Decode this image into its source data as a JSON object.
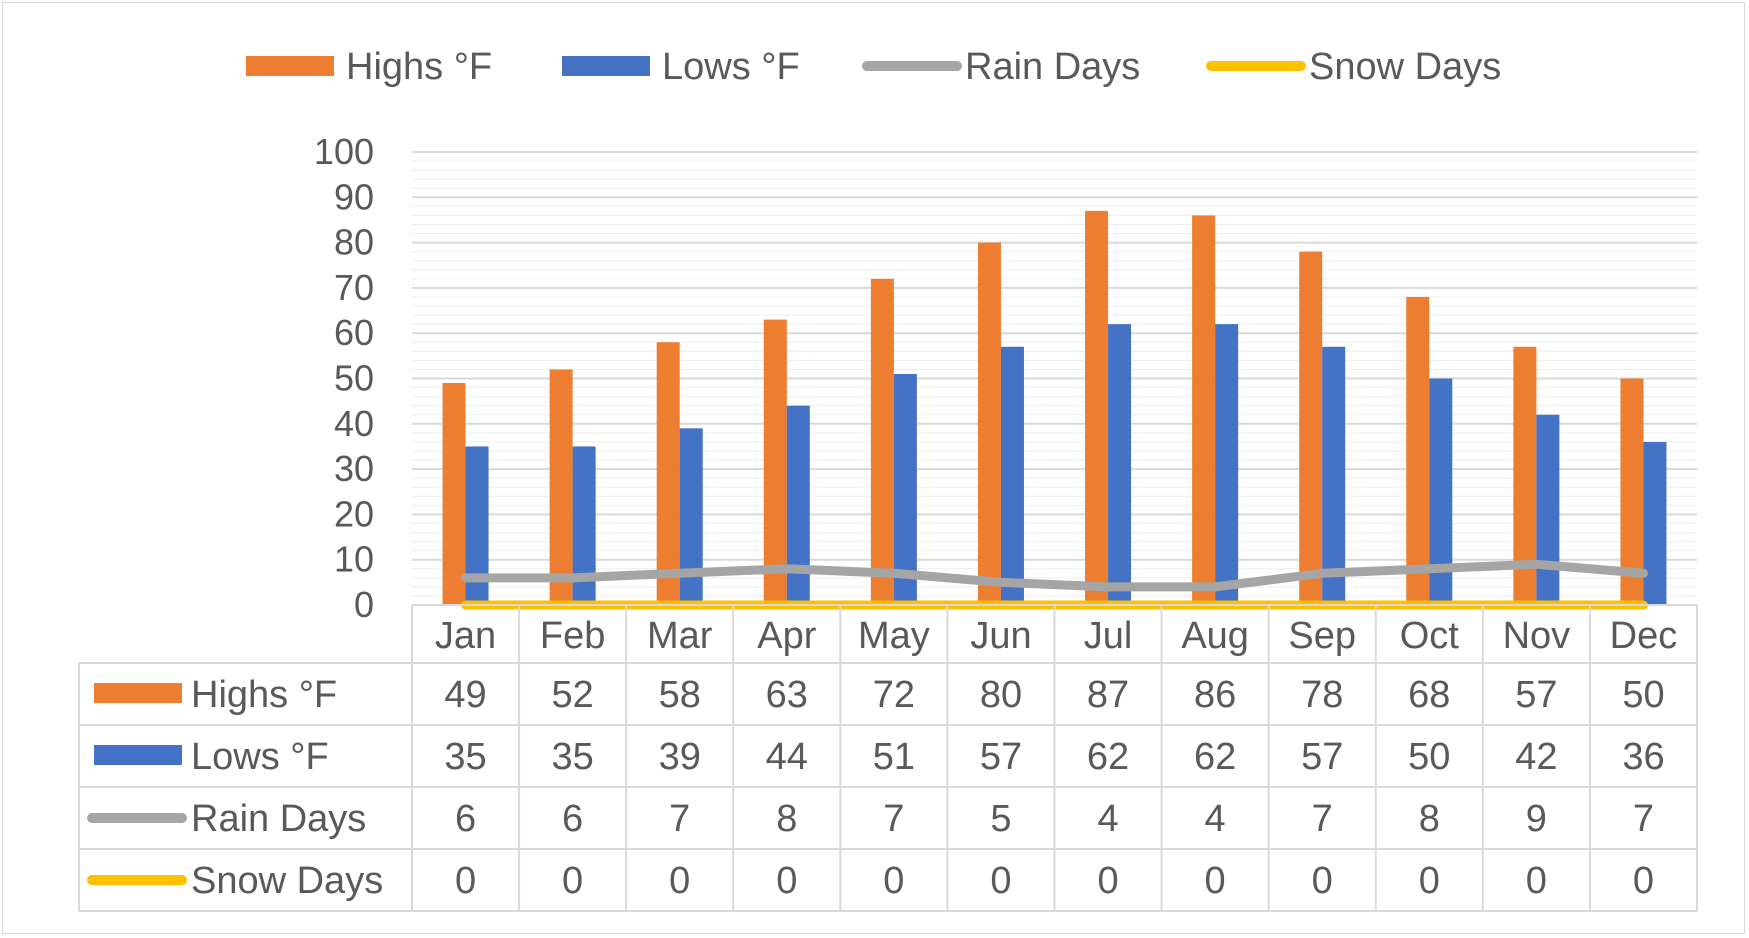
{
  "chart_data": {
    "type": "bar",
    "categories": [
      "Jan",
      "Feb",
      "Mar",
      "Apr",
      "May",
      "Jun",
      "Jul",
      "Aug",
      "Sep",
      "Oct",
      "Nov",
      "Dec"
    ],
    "series": [
      {
        "name": "Highs °F",
        "kind": "bar",
        "color": "#ED7D31",
        "values": [
          49,
          52,
          58,
          63,
          72,
          80,
          87,
          86,
          78,
          68,
          57,
          50
        ]
      },
      {
        "name": "Lows °F",
        "kind": "bar",
        "color": "#4472C4",
        "values": [
          35,
          35,
          39,
          44,
          51,
          57,
          62,
          62,
          57,
          50,
          42,
          36
        ]
      },
      {
        "name": "Rain Days",
        "kind": "line",
        "color": "#A5A5A5",
        "values": [
          6,
          6,
          7,
          8,
          7,
          5,
          4,
          4,
          7,
          8,
          9,
          7
        ]
      },
      {
        "name": "Snow Days",
        "kind": "line",
        "color": "#FFC000",
        "values": [
          0,
          0,
          0,
          0,
          0,
          0,
          0,
          0,
          0,
          0,
          0,
          0
        ]
      }
    ],
    "ylim": [
      0,
      100
    ],
    "yticks": [
      0,
      10,
      20,
      30,
      40,
      50,
      60,
      70,
      80,
      90,
      100
    ],
    "legend": "top",
    "data_table": true,
    "grid": true
  }
}
